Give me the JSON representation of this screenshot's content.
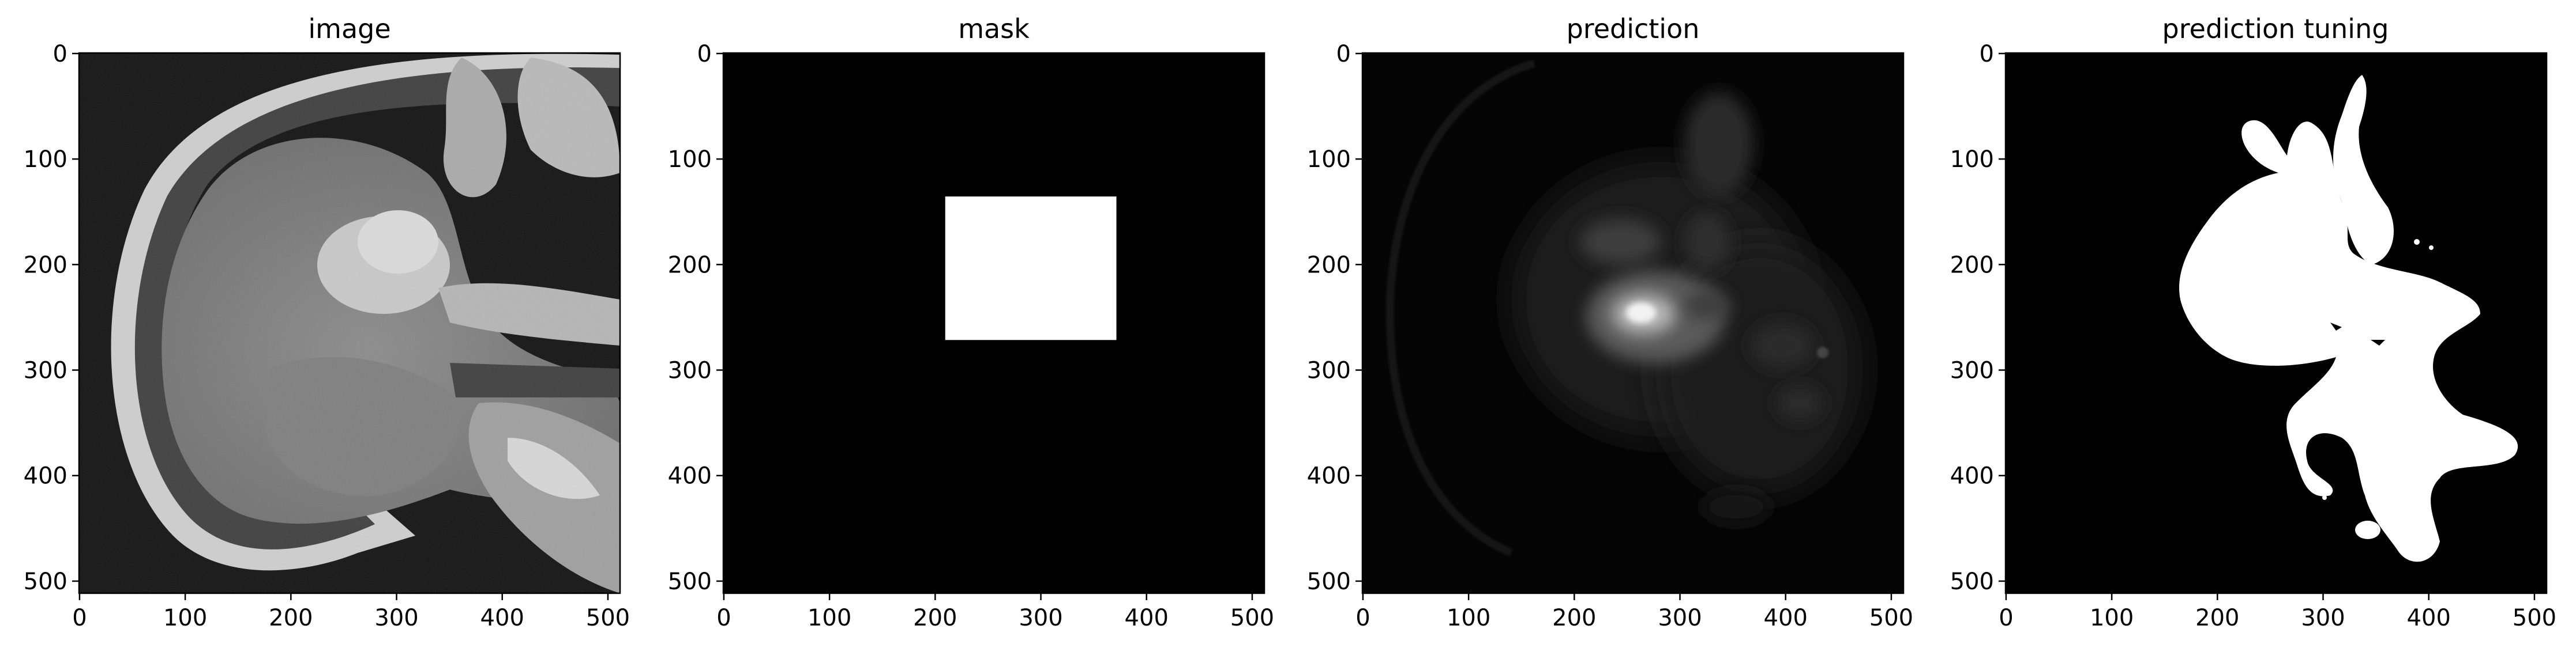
{
  "panels": [
    {
      "title": "image",
      "kind": "mri-slice",
      "x_ticks": [
        "0",
        "100",
        "200",
        "300",
        "400",
        "500"
      ],
      "y_ticks": [
        "0",
        "100",
        "200",
        "300",
        "400",
        "500"
      ]
    },
    {
      "title": "mask",
      "kind": "binary-mask",
      "mask_box_data_units": {
        "x0": 210,
        "x1": 372,
        "y0": 136,
        "y1": 272
      },
      "x_ticks": [
        "0",
        "100",
        "200",
        "300",
        "400",
        "500"
      ],
      "y_ticks": [
        "0",
        "100",
        "200",
        "300",
        "400",
        "500"
      ]
    },
    {
      "title": "prediction",
      "kind": "soft-heatmap",
      "x_ticks": [
        "0",
        "100",
        "200",
        "300",
        "400",
        "500"
      ],
      "y_ticks": [
        "0",
        "100",
        "200",
        "300",
        "400",
        "500"
      ]
    },
    {
      "title": "prediction tuning",
      "kind": "binary-segmentation",
      "x_ticks": [
        "0",
        "100",
        "200",
        "300",
        "400",
        "500"
      ],
      "y_ticks": [
        "0",
        "100",
        "200",
        "300",
        "400",
        "500"
      ]
    }
  ],
  "image_extent": [
    0,
    512
  ],
  "colors": {
    "background": "#ffffff",
    "axes": "#000000",
    "mask_fill": "#ffffff",
    "panel_fill": "#000000"
  }
}
